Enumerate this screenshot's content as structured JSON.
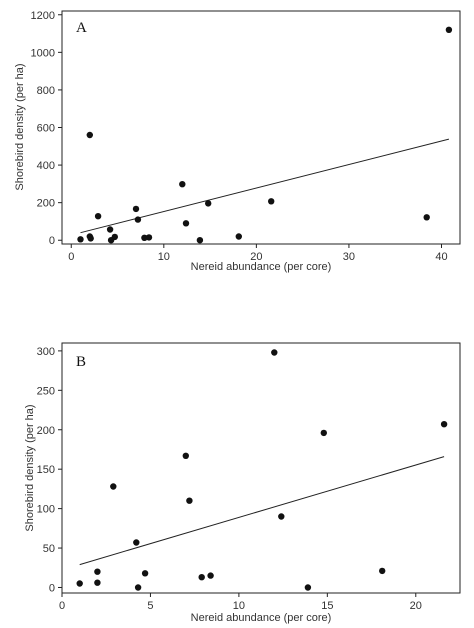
{
  "chart_data": [
    {
      "type": "scatter",
      "panel_label": "A",
      "xlabel": "Nereid abundance (per core)",
      "ylabel": "Shorebird density (per ha)",
      "xlim": [
        -1,
        42
      ],
      "ylim": [
        -20,
        1220
      ],
      "xticks": [
        0,
        10,
        20,
        30,
        40
      ],
      "yticks": [
        0,
        200,
        400,
        600,
        800,
        1000,
        1200
      ],
      "grid": false,
      "points": [
        {
          "x": 1.0,
          "y": 5
        },
        {
          "x": 2.0,
          "y": 560
        },
        {
          "x": 2.0,
          "y": 20
        },
        {
          "x": 2.1,
          "y": 10
        },
        {
          "x": 2.9,
          "y": 128
        },
        {
          "x": 4.2,
          "y": 57
        },
        {
          "x": 4.3,
          "y": 0
        },
        {
          "x": 4.7,
          "y": 18
        },
        {
          "x": 7.0,
          "y": 167
        },
        {
          "x": 7.2,
          "y": 110
        },
        {
          "x": 7.9,
          "y": 13
        },
        {
          "x": 8.4,
          "y": 15
        },
        {
          "x": 12.0,
          "y": 298
        },
        {
          "x": 12.4,
          "y": 90
        },
        {
          "x": 13.9,
          "y": 0
        },
        {
          "x": 14.8,
          "y": 196
        },
        {
          "x": 18.1,
          "y": 20
        },
        {
          "x": 21.6,
          "y": 207
        },
        {
          "x": 38.4,
          "y": 122
        },
        {
          "x": 40.8,
          "y": 1120
        }
      ],
      "trendline": [
        {
          "x": 1.0,
          "y": 40
        },
        {
          "x": 40.8,
          "y": 538
        }
      ]
    },
    {
      "type": "scatter",
      "panel_label": "B",
      "xlabel": "Nereid abundance (per core)",
      "ylabel": "Shorebird density (per ha)",
      "xlim": [
        0,
        22.5
      ],
      "ylim": [
        -7,
        310
      ],
      "xticks": [
        0,
        5,
        10,
        15,
        20
      ],
      "yticks": [
        0,
        50,
        100,
        150,
        200,
        250,
        300
      ],
      "grid": false,
      "points": [
        {
          "x": 1.0,
          "y": 5
        },
        {
          "x": 2.0,
          "y": 20
        },
        {
          "x": 2.0,
          "y": 6
        },
        {
          "x": 2.9,
          "y": 128
        },
        {
          "x": 4.2,
          "y": 57
        },
        {
          "x": 4.3,
          "y": 0
        },
        {
          "x": 4.7,
          "y": 18
        },
        {
          "x": 7.0,
          "y": 167
        },
        {
          "x": 7.2,
          "y": 110
        },
        {
          "x": 7.9,
          "y": 13
        },
        {
          "x": 8.4,
          "y": 15
        },
        {
          "x": 12.0,
          "y": 298
        },
        {
          "x": 12.4,
          "y": 90
        },
        {
          "x": 13.9,
          "y": 0
        },
        {
          "x": 14.8,
          "y": 196
        },
        {
          "x": 18.1,
          "y": 21
        },
        {
          "x": 21.6,
          "y": 207
        }
      ],
      "trendline": [
        {
          "x": 1.0,
          "y": 29
        },
        {
          "x": 21.6,
          "y": 166
        }
      ]
    }
  ]
}
